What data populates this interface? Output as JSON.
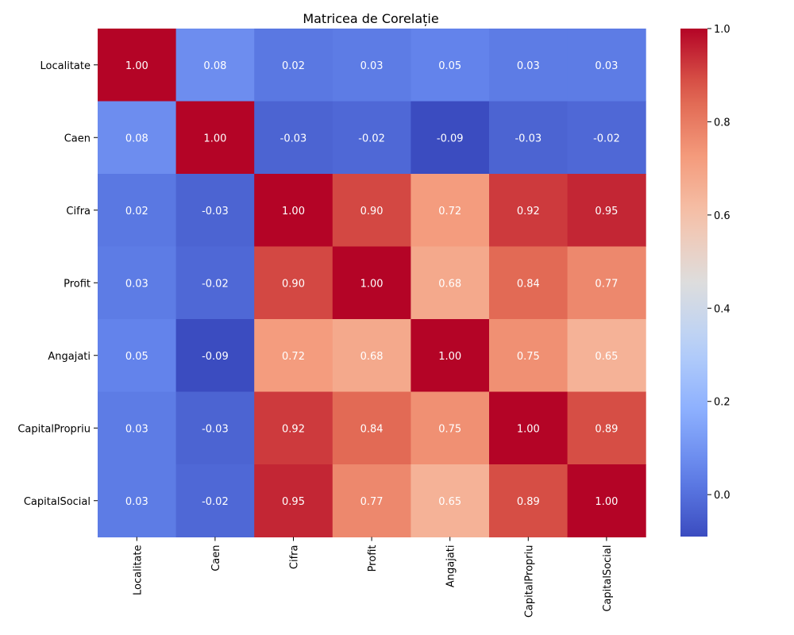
{
  "chart_data": {
    "type": "heatmap",
    "title": "Matricea de Corelație",
    "colormap": "coolwarm",
    "row_labels": [
      "Localitate",
      "Caen",
      "Cifra",
      "Profit",
      "Angajati",
      "CapitalPropriu",
      "CapitalSocial"
    ],
    "col_labels": [
      "Localitate",
      "Caen",
      "Cifra",
      "Profit",
      "Angajati",
      "CapitalPropriu",
      "CapitalSocial"
    ],
    "values": [
      [
        1.0,
        0.08,
        0.02,
        0.03,
        0.05,
        0.03,
        0.03
      ],
      [
        0.08,
        1.0,
        -0.03,
        -0.02,
        -0.09,
        -0.03,
        -0.02
      ],
      [
        0.02,
        -0.03,
        1.0,
        0.9,
        0.72,
        0.92,
        0.95
      ],
      [
        0.03,
        -0.02,
        0.9,
        1.0,
        0.68,
        0.84,
        0.77
      ],
      [
        0.05,
        -0.09,
        0.72,
        0.68,
        1.0,
        0.75,
        0.65
      ],
      [
        0.03,
        -0.03,
        0.92,
        0.84,
        0.75,
        1.0,
        0.89
      ],
      [
        0.03,
        -0.02,
        0.95,
        0.77,
        0.65,
        0.89,
        1.0
      ]
    ],
    "cell_labels": [
      [
        "1.00",
        "0.08",
        "0.02",
        "0.03",
        "0.05",
        "0.03",
        "0.03"
      ],
      [
        "0.08",
        "1.00",
        "-0.03",
        "-0.02",
        "-0.09",
        "-0.03",
        "-0.02"
      ],
      [
        "0.02",
        "-0.03",
        "1.00",
        "0.90",
        "0.72",
        "0.92",
        "0.95"
      ],
      [
        "0.03",
        "-0.02",
        "0.90",
        "1.00",
        "0.68",
        "0.84",
        "0.77"
      ],
      [
        "0.05",
        "-0.09",
        "0.72",
        "0.68",
        "1.00",
        "0.75",
        "0.65"
      ],
      [
        "0.03",
        "-0.03",
        "0.92",
        "0.84",
        "0.75",
        "1.00",
        "0.89"
      ],
      [
        "0.03",
        "-0.02",
        "0.95",
        "0.77",
        "0.65",
        "0.89",
        "1.00"
      ]
    ],
    "vmin": -0.09,
    "vmax": 1.0,
    "colorbar": {
      "ticks": [
        0.0,
        0.2,
        0.4,
        0.6,
        0.8,
        1.0
      ],
      "tick_labels": [
        "0.0",
        "0.2",
        "0.4",
        "0.6",
        "0.8",
        "1.0"
      ]
    }
  }
}
